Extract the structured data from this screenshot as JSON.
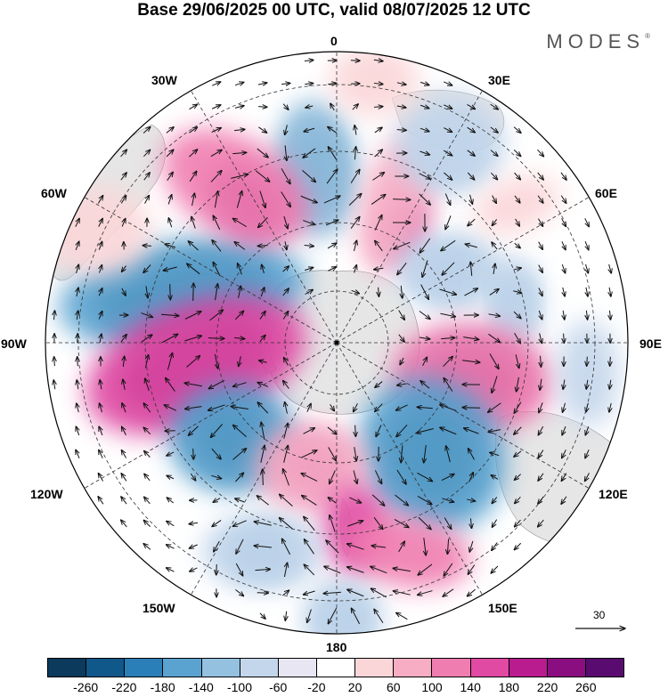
{
  "title": "Base 29/06/2025 00 UTC, valid 08/07/2025 12 UTC",
  "brand": "MODES",
  "brand_mark": "®",
  "longitude_labels": {
    "top": "0",
    "t30e": "30E",
    "t60e": "60E",
    "t90e": "90E",
    "t120e": "120E",
    "t150e": "150E",
    "bottom": "180",
    "t150w": "150W",
    "t120w": "120W",
    "t90w": "90W",
    "t60w": "60W",
    "t30w": "30W"
  },
  "reference_vector": "30",
  "colorbar": {
    "colors": [
      "#0b3a5c",
      "#10578a",
      "#2a7fb8",
      "#5aa3d0",
      "#95c1e0",
      "#c4d6eb",
      "#e8e6f3",
      "#ffffff",
      "#fbd6d8",
      "#f7adc4",
      "#f07db0",
      "#e04aa3",
      "#b81c8f",
      "#8a0e80",
      "#5a0b70"
    ],
    "ticks": [
      "-260",
      "-220",
      "-180",
      "-140",
      "-100",
      "-60",
      "-20",
      "20",
      "60",
      "100",
      "140",
      "180",
      "220",
      "260"
    ]
  },
  "map_colors": {
    "land": "#e6e6e6",
    "ocean": "#ffffff",
    "grid": "#333333"
  }
}
